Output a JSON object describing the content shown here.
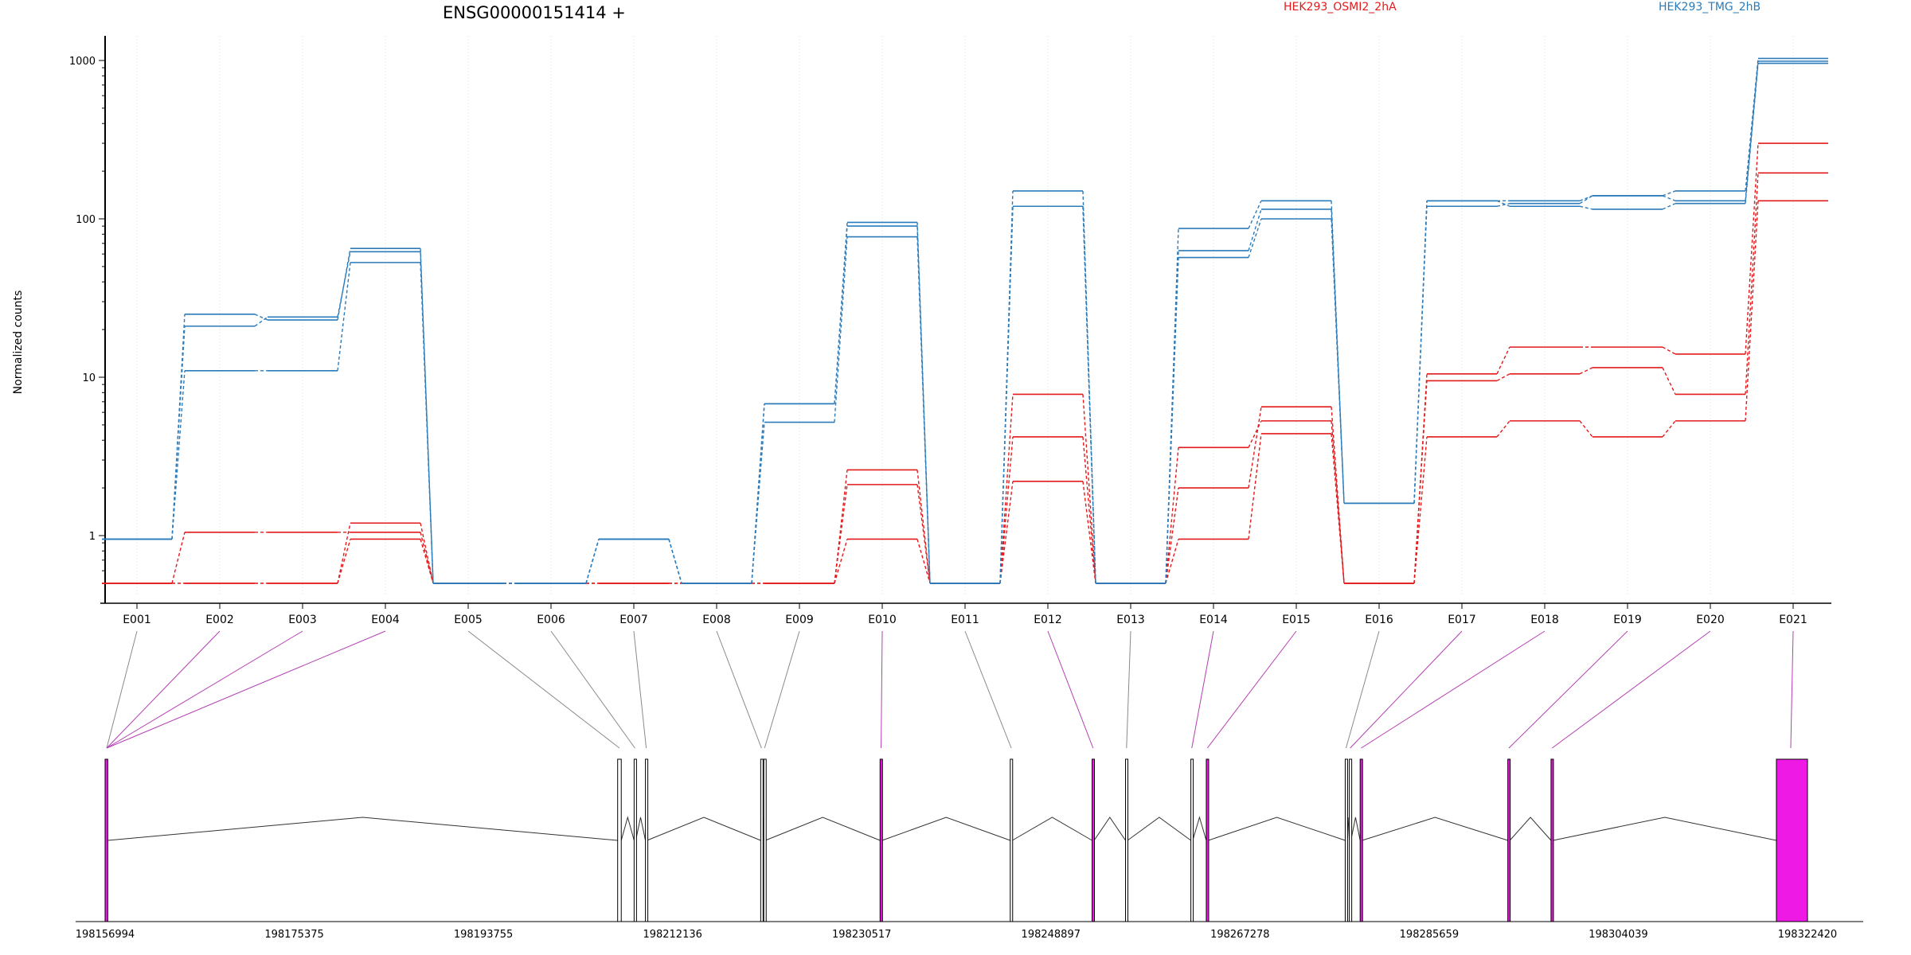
{
  "chart_data": {
    "type": "line",
    "title": "ENSG00000151414 +",
    "ylabel": "Normalized counts",
    "yscale": "log",
    "ylim": [
      0.5,
      1100
    ],
    "yticks": [
      1,
      10,
      100,
      1000
    ],
    "ytick_labels": [
      "1",
      "10",
      "100",
      "1000"
    ],
    "grid": "vertical",
    "legend_position": "top",
    "categories": [
      "E001",
      "E002",
      "E003",
      "E004",
      "E005",
      "E006",
      "E007",
      "E008",
      "E009",
      "E010",
      "E011",
      "E012",
      "E013",
      "E014",
      "E015",
      "E016",
      "E017",
      "E018",
      "E019",
      "E020",
      "E021"
    ],
    "groups": [
      {
        "name": "HEK293_OSMI2_2hA",
        "color": "#e31a1c"
      },
      {
        "name": "HEK293_TMG_2hB",
        "color": "#2b7bba"
      }
    ],
    "series": [
      {
        "group": 0,
        "values": [
          0.5,
          1.05,
          1.05,
          1.05,
          0.5,
          0.5,
          0.5,
          0.5,
          0.5,
          2.1,
          0.5,
          2.2,
          0.5,
          0.95,
          4.4,
          0.5,
          4.2,
          5.3,
          4.2,
          5.3,
          130
        ]
      },
      {
        "group": 0,
        "values": [
          0.5,
          0.5,
          0.5,
          1.2,
          0.5,
          0.5,
          0.5,
          0.5,
          0.5,
          2.6,
          0.5,
          7.8,
          0.5,
          2.0,
          6.5,
          0.5,
          10.5,
          15.5,
          15.5,
          14.0,
          300
        ]
      },
      {
        "group": 0,
        "values": [
          0.5,
          0.5,
          0.5,
          0.95,
          0.5,
          0.5,
          0.5,
          0.5,
          0.5,
          0.95,
          0.5,
          4.2,
          0.5,
          3.6,
          5.3,
          0.5,
          9.5,
          10.5,
          11.5,
          7.8,
          195
        ]
      },
      {
        "group": 1,
        "values": [
          0.95,
          25,
          23,
          65,
          0.5,
          0.5,
          0.95,
          0.5,
          6.8,
          95,
          0.5,
          150,
          0.5,
          87,
          130,
          1.6,
          130,
          130,
          140,
          150,
          1030
        ]
      },
      {
        "group": 1,
        "values": [
          0.95,
          21,
          24,
          62,
          0.5,
          0.5,
          0.95,
          0.5,
          6.8,
          90,
          0.5,
          120,
          0.5,
          63,
          115,
          1.6,
          120,
          125,
          140,
          130,
          990
        ]
      },
      {
        "group": 1,
        "values": [
          0.95,
          11,
          11,
          53,
          0.5,
          0.5,
          0.95,
          0.5,
          5.2,
          77,
          0.5,
          120,
          0.5,
          57,
          100,
          1.6,
          130,
          120,
          115,
          125,
          960
        ]
      }
    ],
    "genome_ticks": [
      "198156994",
      "198175375",
      "198193755",
      "198212136",
      "198230517",
      "198248897",
      "198267278",
      "198285659",
      "198304039",
      "198322420"
    ],
    "gene_start": 198156994,
    "gene_end": 198322420,
    "exon_positions": [
      {
        "start": 198156994,
        "end": 198157250,
        "sig": true
      },
      {
        "start": 198206800,
        "end": 198207150,
        "sig": false
      },
      {
        "start": 198208400,
        "end": 198208550,
        "sig": false
      },
      {
        "start": 198209500,
        "end": 198209650,
        "sig": false
      },
      {
        "start": 198220700,
        "end": 198220850,
        "sig": false
      },
      {
        "start": 198221000,
        "end": 198221150,
        "sig": false
      },
      {
        "start": 198232300,
        "end": 198232500,
        "sig": true
      },
      {
        "start": 198244950,
        "end": 198245150,
        "sig": false
      },
      {
        "start": 198252900,
        "end": 198253100,
        "sig": true
      },
      {
        "start": 198256150,
        "end": 198256350,
        "sig": false
      },
      {
        "start": 198262500,
        "end": 198262680,
        "sig": false
      },
      {
        "start": 198264000,
        "end": 198264200,
        "sig": true
      },
      {
        "start": 198277500,
        "end": 198277650,
        "sig": false
      },
      {
        "start": 198277900,
        "end": 198278050,
        "sig": false
      },
      {
        "start": 198278950,
        "end": 198279150,
        "sig": true
      },
      {
        "start": 198293300,
        "end": 198293500,
        "sig": true
      },
      {
        "start": 198297500,
        "end": 198297700,
        "sig": true
      },
      {
        "start": 198319400,
        "end": 198322420,
        "sig": true
      }
    ],
    "exon_map": [
      {
        "exon": "E001",
        "to": 0,
        "sig": false
      },
      {
        "exon": "E002",
        "to": 0,
        "sig": true
      },
      {
        "exon": "E003",
        "to": 0,
        "sig": true
      },
      {
        "exon": "E004",
        "to": 0,
        "sig": true
      },
      {
        "exon": "E005",
        "to": 1,
        "sig": false
      },
      {
        "exon": "E006",
        "to": 2,
        "sig": false
      },
      {
        "exon": "E007",
        "to": 3,
        "sig": false
      },
      {
        "exon": "E008",
        "to": 4,
        "sig": false
      },
      {
        "exon": "E009",
        "to": 5,
        "sig": false
      },
      {
        "exon": "E010",
        "to": 6,
        "sig": true
      },
      {
        "exon": "E011",
        "to": 7,
        "sig": false
      },
      {
        "exon": "E012",
        "to": 8,
        "sig": true
      },
      {
        "exon": "E013",
        "to": 9,
        "sig": false
      },
      {
        "exon": "E014",
        "to": 10,
        "sig": true
      },
      {
        "exon": "E015",
        "to": 11,
        "sig": true
      },
      {
        "exon": "E016",
        "to": 12,
        "sig": false
      },
      {
        "exon": "E017",
        "to": 13,
        "sig": true
      },
      {
        "exon": "E018",
        "to": 14,
        "sig": true
      },
      {
        "exon": "E019",
        "to": 15,
        "sig": true
      },
      {
        "exon": "E020",
        "to": 16,
        "sig": true
      },
      {
        "exon": "E021",
        "to": 17,
        "sig": true
      }
    ]
  }
}
